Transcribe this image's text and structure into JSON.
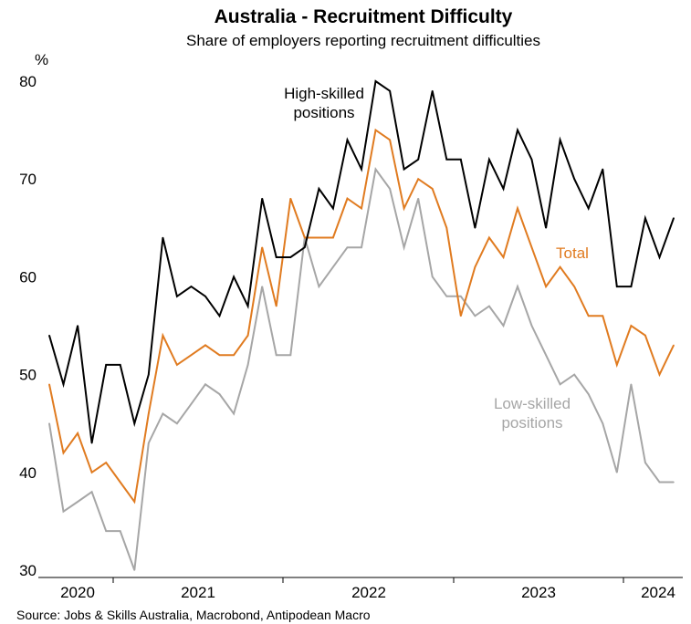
{
  "chart_data": {
    "type": "line",
    "title": "Australia - Recruitment Difficulty",
    "subtitle": "Share of employers reporting recruitment difficulties",
    "ylabel": "%",
    "ylim": [
      30,
      80
    ],
    "yticks": [
      "30",
      "40",
      "50",
      "60",
      "70",
      "80"
    ],
    "xticks": [
      "2020",
      "2021",
      "2022",
      "2023",
      "2024"
    ],
    "grid": false,
    "legend": "inline labels",
    "source": "Source: Jobs & Skills Australia, Macrobond, Antipodean Macro",
    "series": [
      {
        "key": "high",
        "name": "High-skilled positions",
        "label_lines": [
          "High-skilled",
          "positions"
        ],
        "color": "#000000",
        "values": [
          54,
          49,
          55,
          43,
          51,
          51,
          45,
          50,
          64,
          58,
          59,
          58,
          56,
          60,
          57,
          68,
          62,
          62,
          63,
          69,
          67,
          74,
          71,
          80,
          79,
          71,
          72,
          79,
          72,
          72,
          65,
          72,
          69,
          75,
          72,
          65,
          74,
          70,
          67,
          71,
          59,
          59,
          66,
          62,
          66
        ]
      },
      {
        "key": "total",
        "name": "Total",
        "label_lines": [
          "Total"
        ],
        "color": "#E07B20",
        "values": [
          49,
          42,
          44,
          40,
          41,
          39,
          37,
          46,
          54,
          51,
          52,
          53,
          52,
          52,
          54,
          63,
          57,
          68,
          64,
          64,
          64,
          68,
          67,
          75,
          74,
          67,
          70,
          69,
          65,
          56,
          61,
          64,
          62,
          67,
          63,
          59,
          61,
          59,
          56,
          56,
          51,
          55,
          54,
          50,
          53
        ]
      },
      {
        "key": "low",
        "name": "Low-skilled positions",
        "label_lines": [
          "Low-skilled",
          "positions"
        ],
        "color": "#A6A6A6",
        "values": [
          45,
          36,
          37,
          38,
          34,
          34,
          30,
          43,
          46,
          45,
          47,
          49,
          48,
          46,
          51,
          59,
          52,
          52,
          64,
          59,
          61,
          63,
          63,
          71,
          69,
          63,
          68,
          60,
          58,
          58,
          56,
          57,
          55,
          59,
          55,
          52,
          49,
          50,
          48,
          45,
          40,
          49,
          41,
          39,
          39
        ]
      }
    ]
  }
}
